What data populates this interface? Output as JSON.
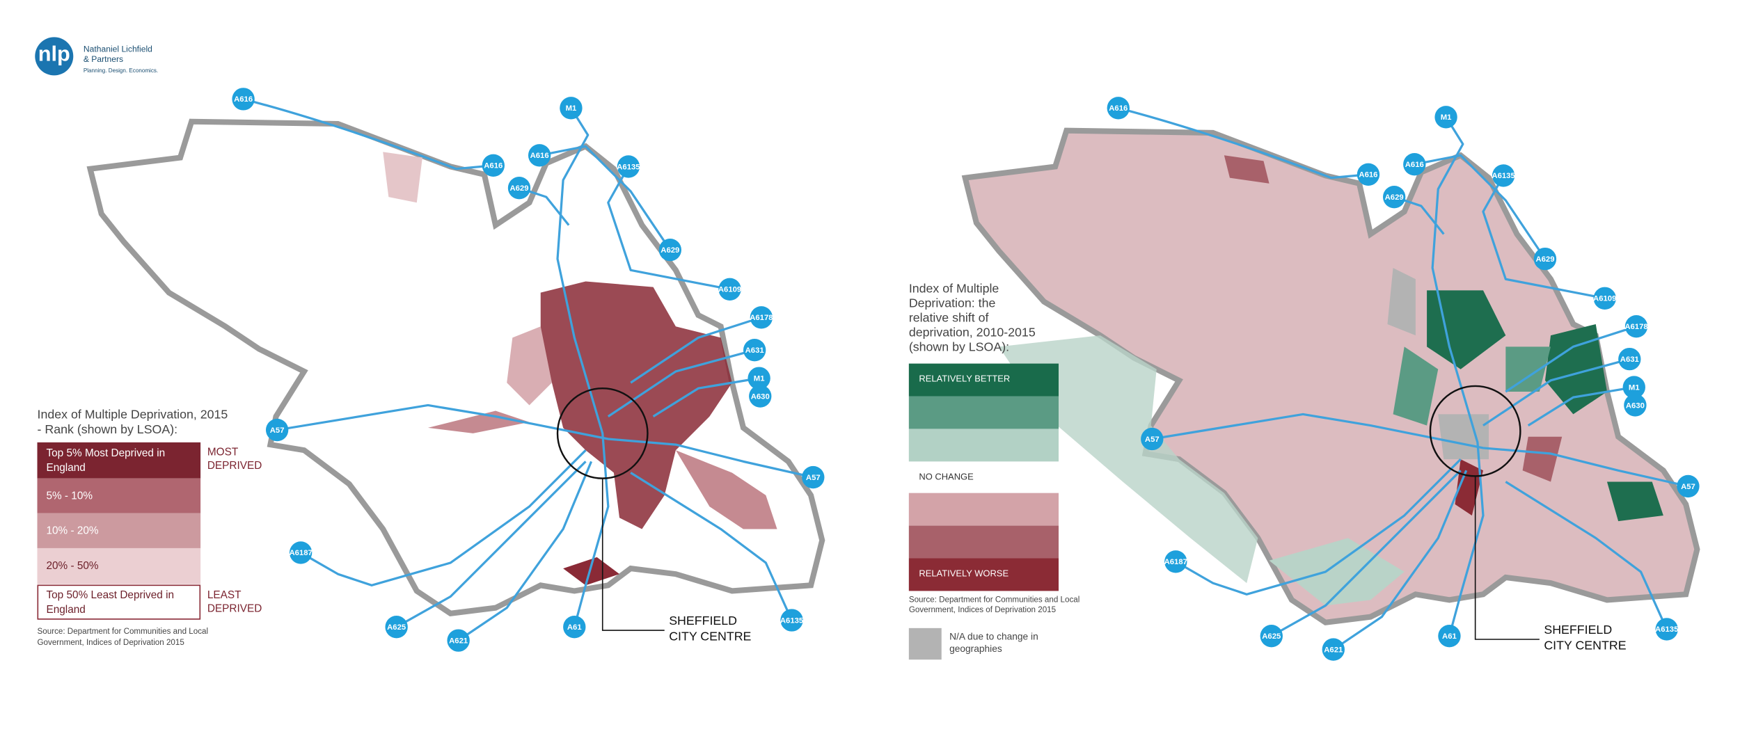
{
  "logo": {
    "mark": "nlp",
    "name_lines": [
      "Nathaniel Lichfield",
      "& Partners"
    ],
    "tagline": "Planning. Design. Economics."
  },
  "maps": [
    {
      "legend": {
        "title_lines": [
          "Index of Multiple Deprivation, 2015",
          "- Rank (shown by LSOA):"
        ],
        "items": [
          [
            "Top 5% Most Deprived in",
            "England"
          ],
          [
            "5% - 10%"
          ],
          [
            "10% - 20%"
          ],
          [
            "20% - 50%"
          ],
          [
            "Top 50% Least Deprived in",
            "England"
          ]
        ],
        "top_label": [
          "MOST",
          "DEPRIVED"
        ],
        "bottom_label": [
          "LEAST",
          "DEPRIVED"
        ]
      },
      "source_lines": [
        "Source: Department for Communities and Local",
        "Government, Indices of Deprivation 2015"
      ],
      "city_centre_lines": [
        "SHEFFIELD",
        "CITY CENTRE"
      ],
      "roads": [
        "A616",
        "A616",
        "A616",
        "A629",
        "M1",
        "A6135",
        "A629",
        "A6109",
        "A6178",
        "A631",
        "M1",
        "A630",
        "A57",
        "A57",
        "A6187",
        "A625",
        "A621",
        "A61",
        "A6135"
      ]
    },
    {
      "legend": {
        "title_lines": [
          "Index of Multiple",
          "Deprivation: the",
          "relative shift of",
          "deprivation, 2010-2015",
          "(shown by LSOA):"
        ],
        "better": "RELATIVELY BETTER",
        "no_change": "NO CHANGE",
        "worse": "RELATIVELY WORSE",
        "na_lines": [
          "N/A due to change in",
          "geographies"
        ]
      },
      "source_lines": [
        "Source: Department for Communities and Local",
        "Government, Indices of Deprivation 2015"
      ],
      "city_centre_lines": [
        "SHEFFIELD",
        "CITY CENTRE"
      ],
      "roads": [
        "A616",
        "A616",
        "A616",
        "A629",
        "M1",
        "A6135",
        "A629",
        "A6109",
        "A6178",
        "A631",
        "M1",
        "A630",
        "A57",
        "A57",
        "A6187",
        "A625",
        "A621",
        "A61",
        "A6135"
      ]
    }
  ]
}
